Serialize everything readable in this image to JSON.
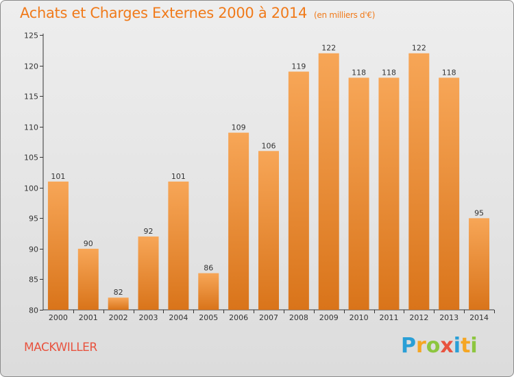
{
  "title": "Achats et Charges Externes 2000 à 2014",
  "subtitle": "(en milliers d'€)",
  "commune": "MACKWILLER",
  "logo": {
    "text": "Proxiti",
    "letters": [
      "P",
      "r",
      "o",
      "x",
      "i",
      "t",
      "i"
    ],
    "colors": [
      "#2a9fd6",
      "#f5a623",
      "#8dc63f",
      "#e8533f",
      "#2a9fd6",
      "#f5a623",
      "#8dc63f"
    ]
  },
  "colors": {
    "bar_light": "#f7a657",
    "bar_dark": "#d9741a",
    "title": "#f07a1a",
    "axis": "#333333",
    "grid": "#c8c8c8"
  },
  "chart_data": {
    "type": "bar",
    "title": "Achats et Charges Externes 2000 à 2014",
    "subtitle": "(en milliers d'€)",
    "categories": [
      "2000",
      "2001",
      "2002",
      "2003",
      "2004",
      "2005",
      "2006",
      "2007",
      "2008",
      "2009",
      "2010",
      "2011",
      "2012",
      "2013",
      "2014"
    ],
    "values": [
      101,
      90,
      82,
      92,
      101,
      86,
      109,
      106,
      119,
      122,
      118,
      118,
      122,
      118,
      95
    ],
    "ylim": [
      80,
      125
    ],
    "yticks": [
      80,
      85,
      90,
      95,
      100,
      105,
      110,
      115,
      120,
      125
    ],
    "grid": false,
    "xlabel": "",
    "ylabel": ""
  }
}
